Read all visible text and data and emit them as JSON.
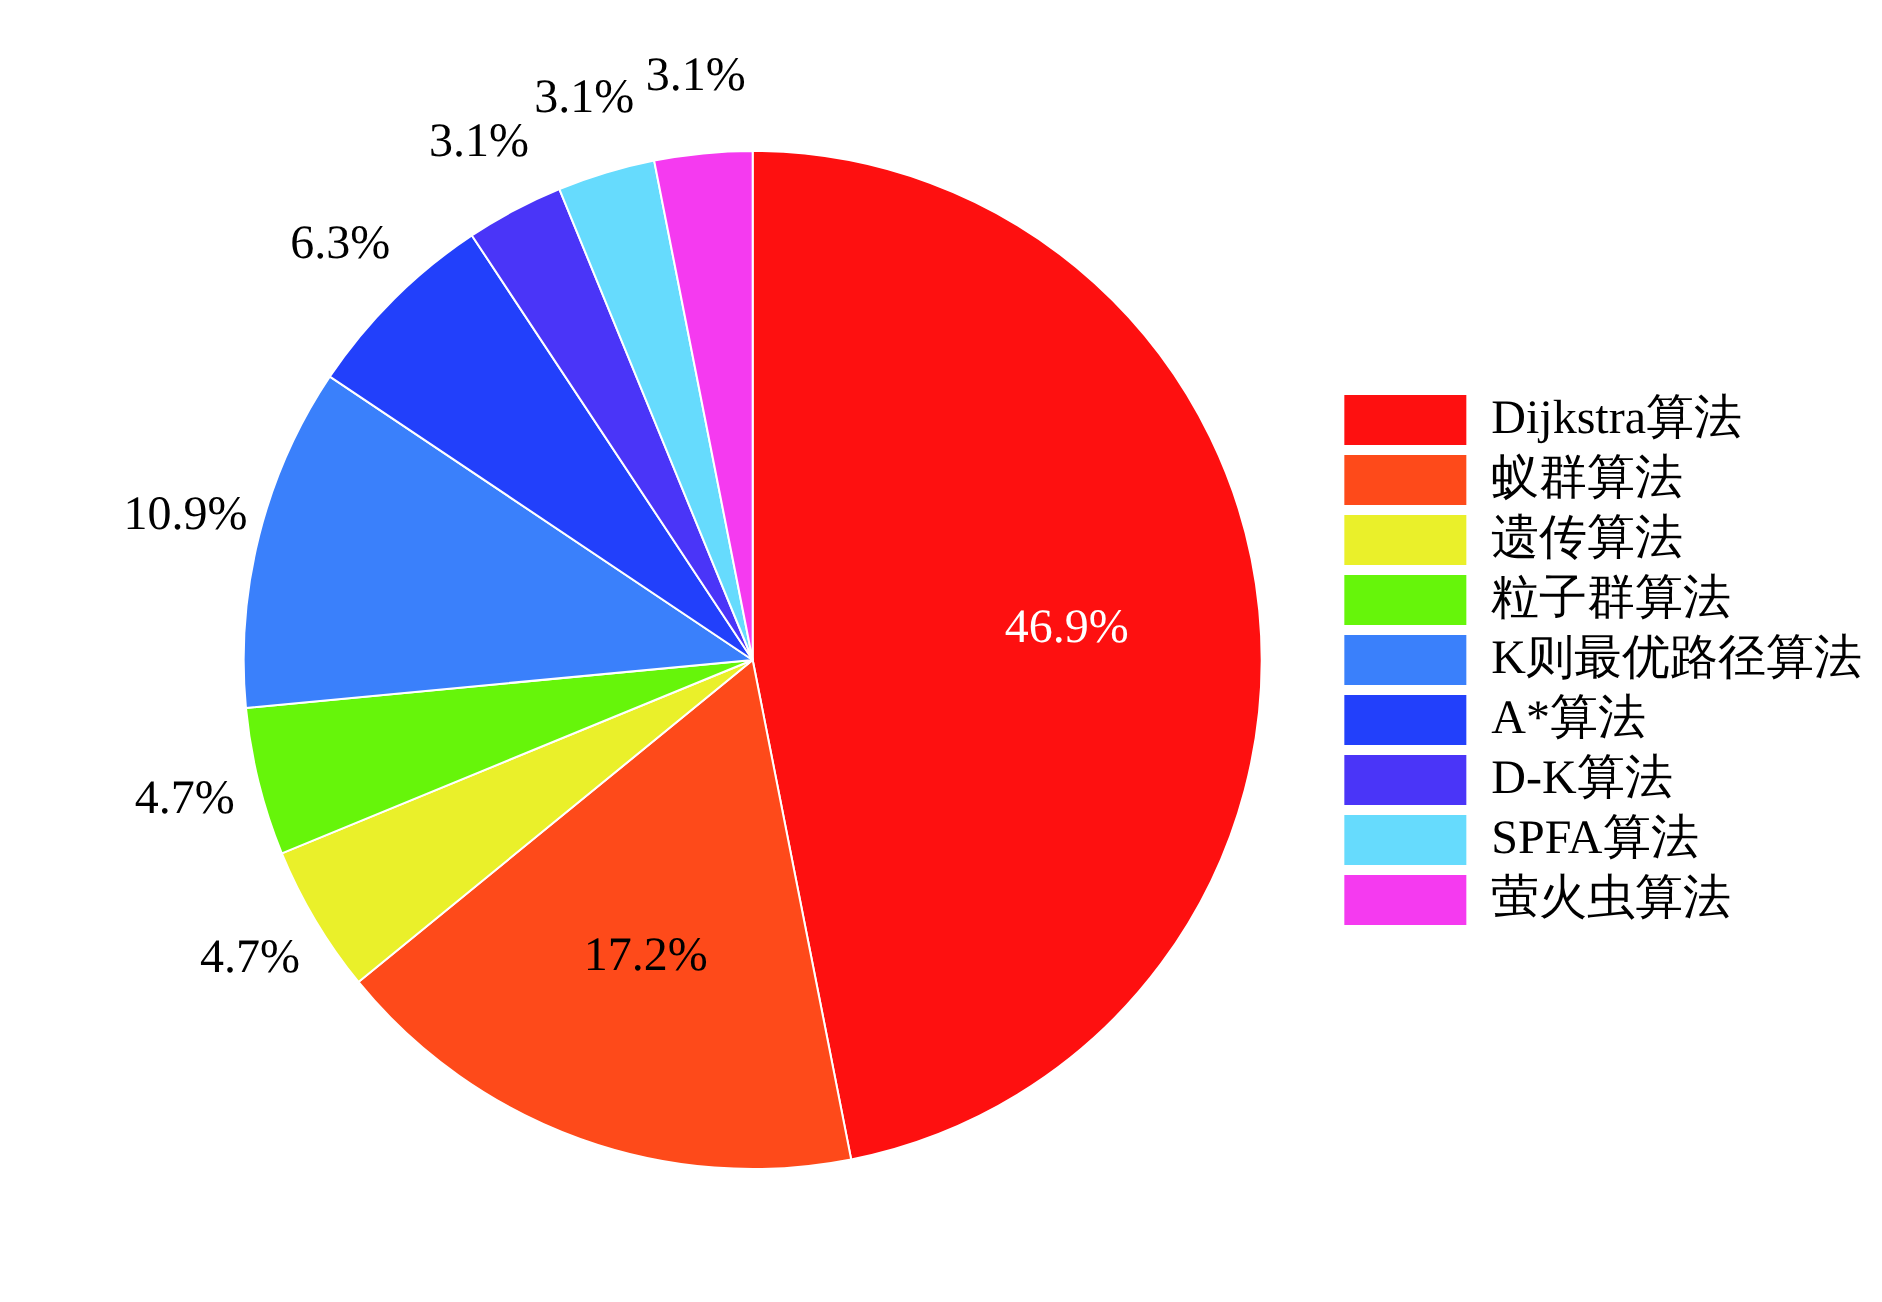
{
  "chart_data": {
    "type": "pie",
    "categories": [
      "Dijkstra算法",
      "蚁群算法",
      "遗传算法",
      "粒子群算法",
      "K则最优路径算法",
      "A*算法",
      "D-K算法",
      "SPFA算法",
      "萤火虫算法"
    ],
    "values": [
      46.9,
      17.2,
      4.7,
      4.7,
      10.9,
      6.3,
      3.1,
      3.1,
      3.1
    ],
    "value_labels": [
      "46.9%",
      "17.2%",
      "4.7%",
      "4.7%",
      "10.9%",
      "6.3%",
      "3.1%",
      "3.1%",
      "3.1%"
    ],
    "colors": [
      "#fe1010",
      "#fe4a1a",
      "#eaf02a",
      "#66f50a",
      "#3a80fb",
      "#2240fb",
      "#4a35f8",
      "#66dbfd",
      "#f53af0"
    ],
    "legend": "right"
  }
}
